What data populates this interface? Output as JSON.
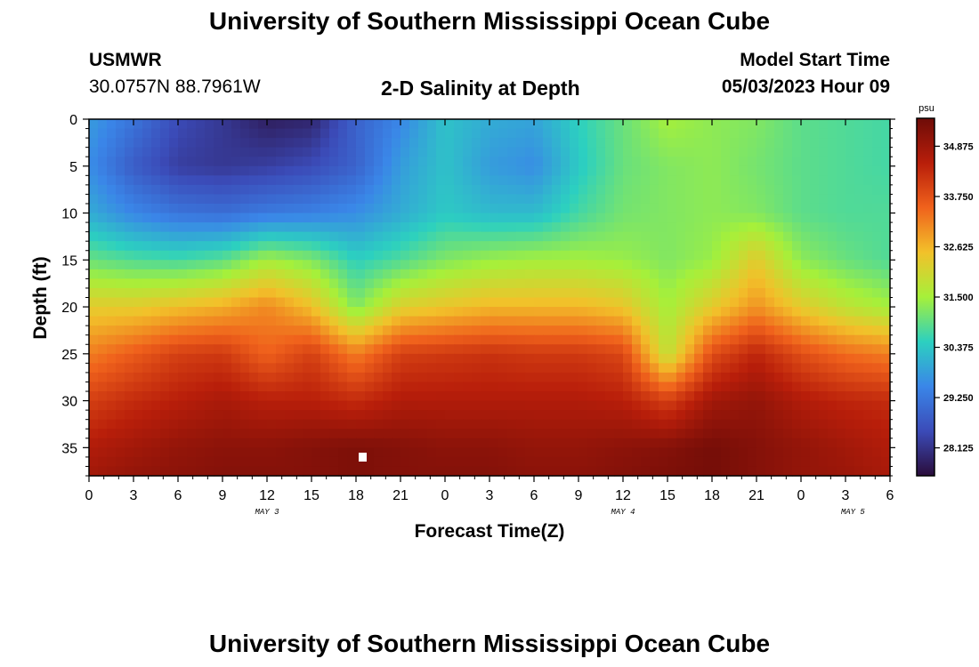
{
  "header": {
    "title": "University of Southern Mississippi Ocean Cube",
    "station": "USMWR",
    "coords": "30.0757N  88.7961W",
    "subtitle": "2-D Salinity at Depth",
    "model_start_label": "Model Start Time",
    "model_start_value": "05/03/2023 Hour 09"
  },
  "footer": {
    "title": "University of Southern Mississippi Ocean Cube"
  },
  "colorbar": {
    "unit": "psu",
    "ticks": [
      "34.875",
      "33.750",
      "32.625",
      "31.500",
      "30.375",
      "29.250",
      "28.125"
    ],
    "colors": [
      "#2a0c3a",
      "#3b4bb8",
      "#3a86e8",
      "#2cd0c0",
      "#a6f03a",
      "#f2c12a",
      "#f0621c",
      "#b81e0a",
      "#6e0c08"
    ]
  },
  "chart_data": {
    "type": "heatmap",
    "title": "2-D Salinity at Depth",
    "xlabel": "Forecast Time(Z)",
    "ylabel": "Depth (ft)",
    "x_tick_labels": [
      "0",
      "3",
      "6",
      "9",
      "12",
      "15",
      "18",
      "21",
      "0",
      "3",
      "6",
      "9",
      "12",
      "15",
      "18",
      "21",
      "0",
      "3",
      "6"
    ],
    "y_tick_labels": [
      "0",
      "5",
      "10",
      "15",
      "20",
      "25",
      "30",
      "35"
    ],
    "date_labels": [
      "MAY 3",
      "MAY 4",
      "MAY 5"
    ],
    "ylim": [
      0,
      38
    ],
    "xlim_hours": [
      0,
      54
    ],
    "value_range": [
      27.5,
      35.5
    ],
    "unit": "psu",
    "x_hours": [
      0,
      3,
      6,
      9,
      12,
      15,
      18,
      21,
      24,
      27,
      30,
      33,
      36,
      39,
      42,
      45,
      48,
      51,
      54
    ],
    "depth_ft": [
      0,
      5,
      10,
      15,
      20,
      25,
      30,
      35,
      38
    ],
    "salinity": [
      [
        29.8,
        29.2,
        28.5,
        28.2,
        27.8,
        27.9,
        28.9,
        29.5,
        30.3,
        30.0,
        29.9,
        30.5,
        31.0,
        31.5,
        31.3,
        31.2,
        30.9,
        30.8,
        30.7
      ],
      [
        29.6,
        28.8,
        28.3,
        28.2,
        28.3,
        28.5,
        28.9,
        29.8,
        30.3,
        29.8,
        29.6,
        30.4,
        31.0,
        31.2,
        31.3,
        31.1,
        30.9,
        30.8,
        30.7
      ],
      [
        30.0,
        29.5,
        29.2,
        29.1,
        29.3,
        29.4,
        29.6,
        30.0,
        30.4,
        30.2,
        30.2,
        30.7,
        31.1,
        31.2,
        31.3,
        31.2,
        30.9,
        30.8,
        30.8
      ],
      [
        31.0,
        30.8,
        30.7,
        30.9,
        31.5,
        31.2,
        30.5,
        30.8,
        31.2,
        31.4,
        31.5,
        31.5,
        31.4,
        31.2,
        31.4,
        32.3,
        31.3,
        31.0,
        30.8
      ],
      [
        32.3,
        32.3,
        32.5,
        32.7,
        33.1,
        32.5,
        31.2,
        32.2,
        32.4,
        32.6,
        32.6,
        32.6,
        32.4,
        31.5,
        32.3,
        33.0,
        32.3,
        31.8,
        31.5
      ],
      [
        33.2,
        33.6,
        34.0,
        34.1,
        33.5,
        34.0,
        33.2,
        34.0,
        34.1,
        34.2,
        34.1,
        34.1,
        33.9,
        31.8,
        33.8,
        34.4,
        33.8,
        33.4,
        33.2
      ],
      [
        34.0,
        34.3,
        34.5,
        34.7,
        34.5,
        34.5,
        34.3,
        34.6,
        34.6,
        34.6,
        34.6,
        34.6,
        34.5,
        34.0,
        34.8,
        35.0,
        34.6,
        34.4,
        34.3
      ],
      [
        34.6,
        34.8,
        35.0,
        35.1,
        35.1,
        35.2,
        35.3,
        35.2,
        35.1,
        35.1,
        35.0,
        35.0,
        35.1,
        35.2,
        35.4,
        35.2,
        35.0,
        34.8,
        34.6
      ],
      [
        34.8,
        35.0,
        35.1,
        35.2,
        35.2,
        35.2,
        35.3,
        35.2,
        35.2,
        35.2,
        35.1,
        35.1,
        35.2,
        35.3,
        35.4,
        35.2,
        35.0,
        34.9,
        34.7
      ]
    ]
  }
}
